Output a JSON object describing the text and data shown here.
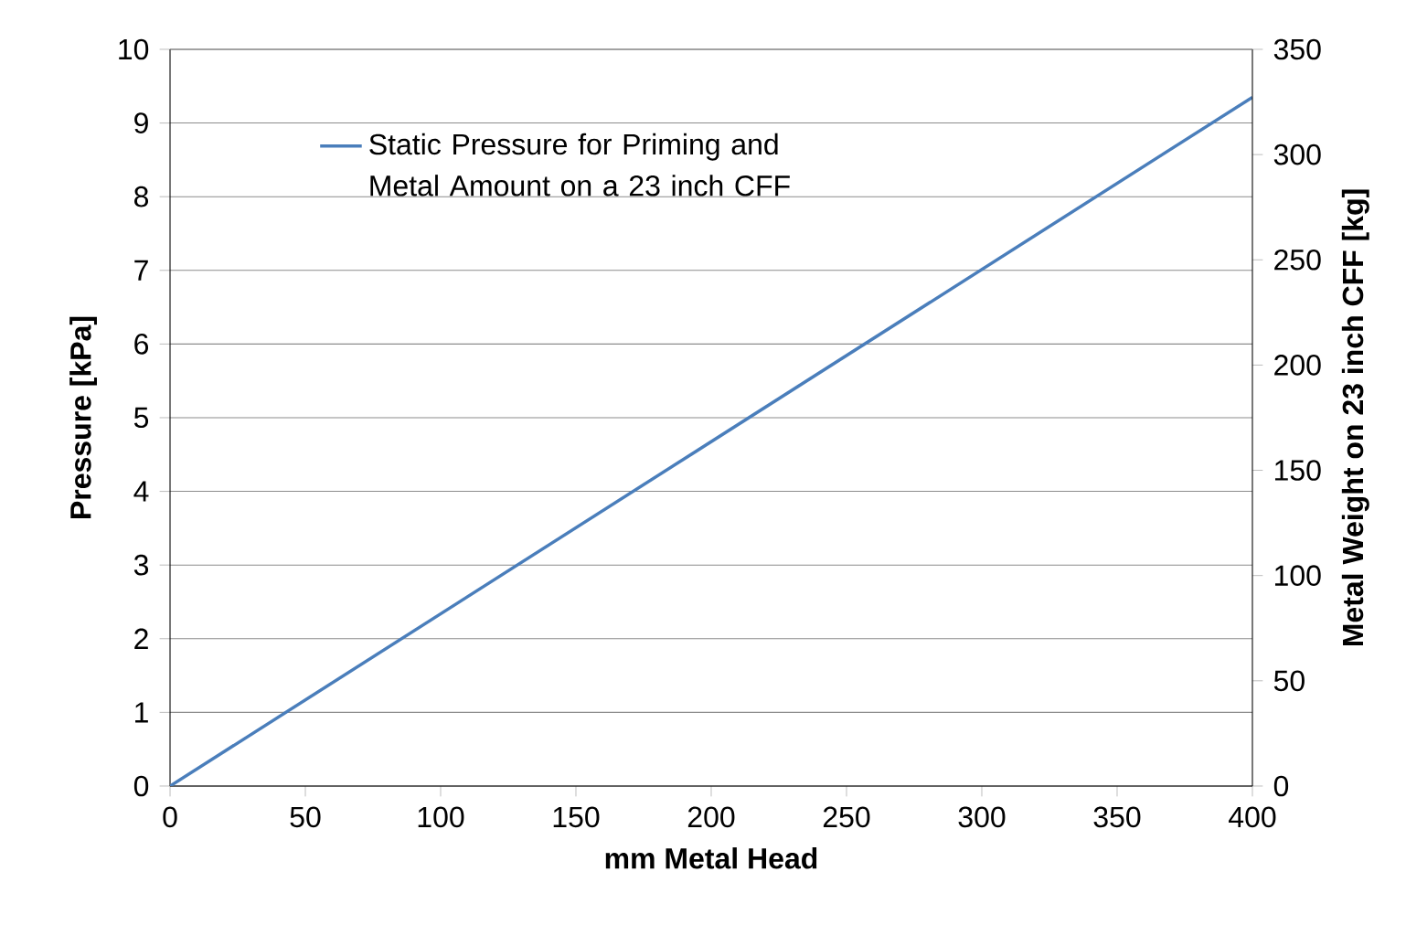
{
  "chart_data": {
    "type": "line",
    "xlabel": "mm Metal Head",
    "ylabel": "Pressure [kPa]",
    "y2label": "Metal Weight on 23 inch CFF [kg]",
    "x": [
      0,
      400
    ],
    "series": [
      {
        "name": "Static Pressure for Priming and Metal Amount on a 23 inch CFF",
        "color": "#4a7ebb",
        "values": [
          0,
          9.35
        ]
      }
    ],
    "xlim": [
      0,
      400
    ],
    "xticks": [
      0,
      50,
      100,
      150,
      200,
      250,
      300,
      350,
      400
    ],
    "ylim": [
      0,
      10
    ],
    "yticks": [
      0,
      1,
      2,
      3,
      4,
      5,
      6,
      7,
      8,
      9,
      10
    ],
    "y2lim": [
      0,
      350
    ],
    "y2ticks": [
      0,
      50,
      100,
      150,
      200,
      250,
      300,
      350
    ],
    "grid": "y",
    "legend": "top left",
    "marker": "none",
    "line_style": "solid"
  }
}
